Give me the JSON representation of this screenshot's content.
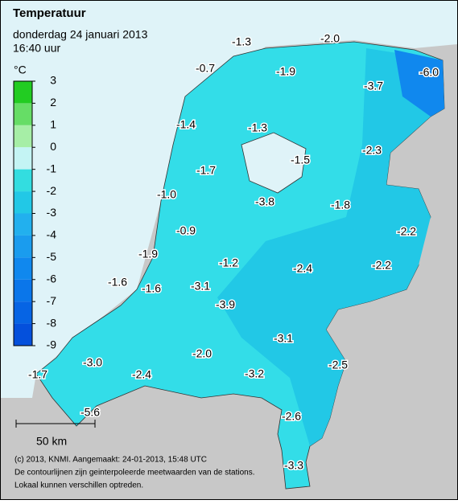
{
  "header": {
    "title": "Temperatuur",
    "date": "donderdag 24 januari 2013",
    "time": "16:40 uur"
  },
  "legend": {
    "unit": "°C",
    "ticks": [
      3,
      2,
      1,
      0,
      -1,
      -2,
      -3,
      -4,
      -5,
      -6,
      -7,
      -8,
      -9
    ],
    "colors": [
      "#22cc22",
      "#66dd66",
      "#a6eea6",
      "#c4f4f4",
      "#33dde0",
      "#22c8e6",
      "#22b0ee",
      "#1a9cee",
      "#1088ee",
      "#0a76ea",
      "#0664e4",
      "#0450dc"
    ]
  },
  "stations": {
    "values": [
      -1.3,
      -2.0,
      -0.7,
      -1.9,
      -6.0,
      -3.7,
      -1.4,
      -1.3,
      -2.3,
      -1.5,
      -1.7,
      -1.0,
      -3.8,
      -1.8,
      -0.9,
      -2.2,
      -1.9,
      -1.2,
      -2.2,
      -2.4,
      -1.6,
      -1.6,
      -3.1,
      -3.9,
      -3.1,
      -2.0,
      -3.0,
      -2.5,
      -1.7,
      -2.4,
      -3.2,
      -5.6,
      -2.6,
      -3.3
    ],
    "value_labels": [
      "-1.3",
      "-2.0",
      "-0.7",
      "-1.9",
      "-6.0",
      "-3.7",
      "-1.4",
      "-1.3",
      "-2.3",
      "-1.5",
      "-1.7",
      "-1.0",
      "-3.8",
      "-1.8",
      "-0.9",
      "-2.2",
      "-1.9",
      "-1.2",
      "-2.2",
      "-2.4",
      "-1.6",
      "-1.6",
      "-3.1",
      "-3.9",
      "-3.1",
      "-2.0",
      "-3.0",
      "-2.5",
      "-1.7",
      "-2.4",
      "-3.2",
      "-5.6",
      "-2.6",
      "-3.3"
    ]
  },
  "scale": "50 km",
  "footer": [
    "(c) 2013, KNMI. Aangemaakt: 24-01-2013, 15:48 UTC",
    "De contourlijnen zijn geinterpoleerde meetwaarden van de stations.",
    "Lokaal kunnen verschillen optreden."
  ]
}
